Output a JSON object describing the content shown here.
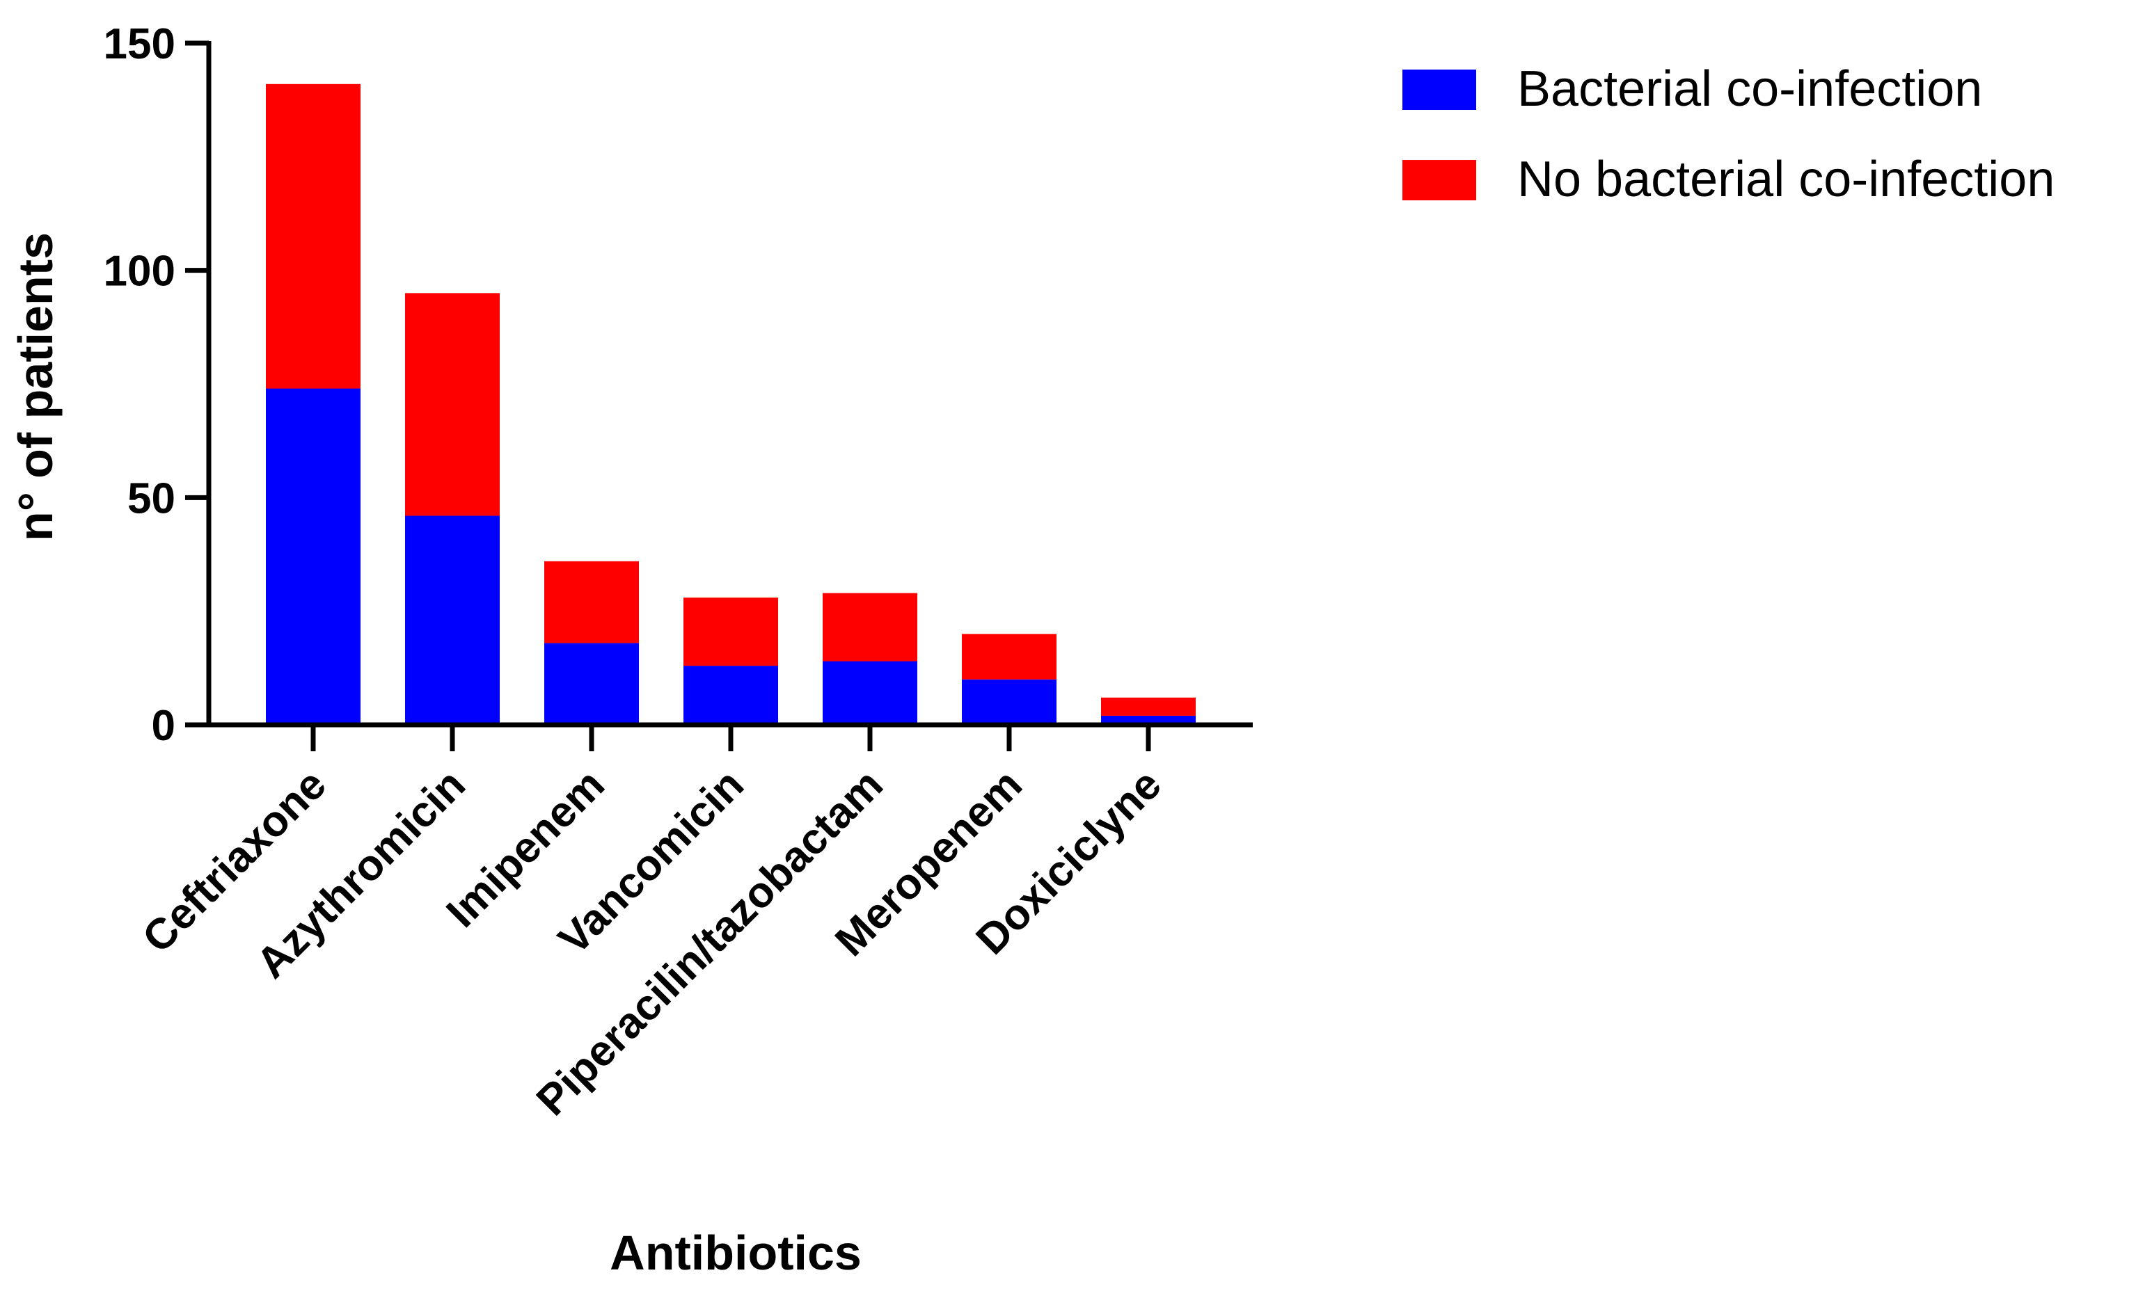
{
  "chart_data": {
    "type": "bar",
    "stacked": true,
    "title": "",
    "xlabel": "Antibiotics",
    "ylabel": "n° of patients",
    "categories": [
      "Ceftriaxone",
      "Azythromicin",
      "Imipenem",
      "Vancomicin",
      "Piperacilin/tazobactam",
      "Meropenem",
      "Doxiciclyne"
    ],
    "series": [
      {
        "name": "Bacterial co-infection",
        "color": "#0000ff",
        "values": [
          74,
          46,
          18,
          13,
          14,
          10,
          2
        ]
      },
      {
        "name": "No bacterial co-infection",
        "color": "#ff0000",
        "values": [
          67,
          49,
          18,
          15,
          15,
          10,
          4
        ]
      }
    ],
    "ylim": [
      0,
      150
    ],
    "yticks": [
      0,
      50,
      100,
      150
    ],
    "grid": false,
    "legend": "top-right"
  }
}
